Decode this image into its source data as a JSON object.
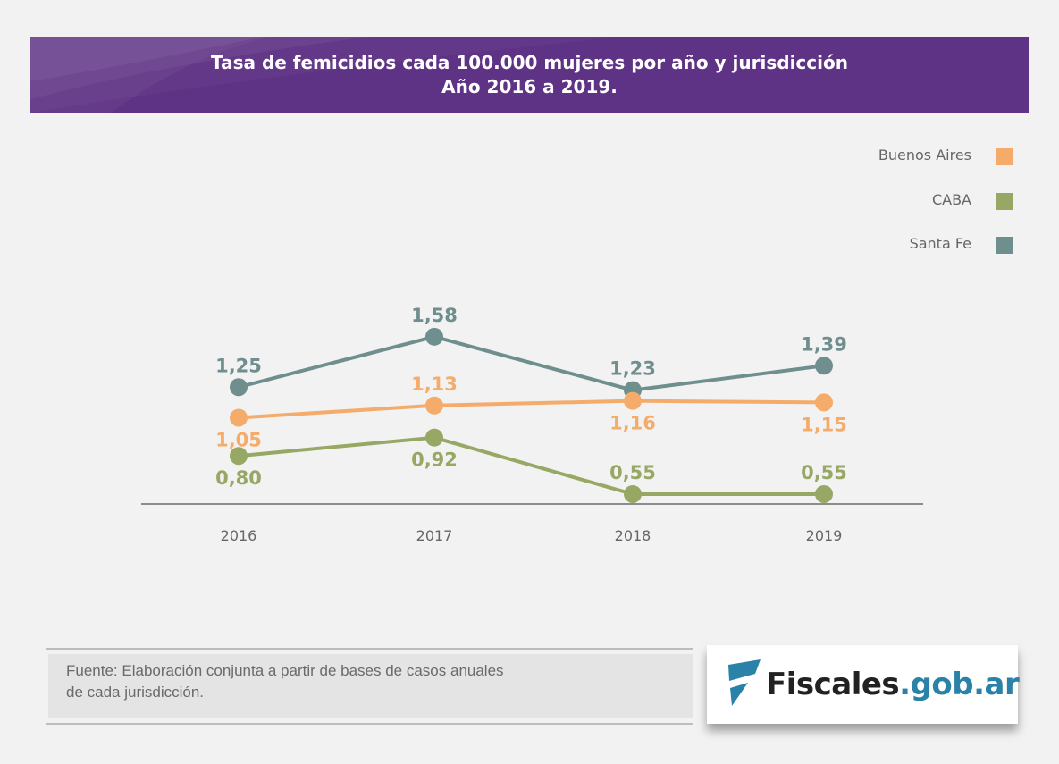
{
  "header": {
    "title_line1": "Tasa de femicidios cada 100.000 mujeres por año y jurisdicción",
    "title_line2": "Año 2016 a 2019."
  },
  "colors": {
    "header_bg": "#5e3285",
    "buenos_aires": "#f5ac6a",
    "caba": "#97a865",
    "santa_fe": "#6f8f8e",
    "axis": "#8c8c8c"
  },
  "chart_data": {
    "type": "line",
    "title": "Tasa de femicidios cada 100.000 mujeres por año y jurisdicción. Año 2016 a 2019.",
    "xlabel": "",
    "ylabel": "",
    "categories": [
      "2016",
      "2017",
      "2018",
      "2019"
    ],
    "ylim": [
      0.0,
      1.8
    ],
    "grid": false,
    "legend_position": "top-right",
    "series": [
      {
        "name": "Buenos Aires",
        "color": "#f5ac6a",
        "values": [
          1.05,
          1.13,
          1.16,
          1.15
        ],
        "labels": [
          "1,05",
          "1,13",
          "1,16",
          "1,15"
        ],
        "label_pos": [
          "below",
          "above",
          "below",
          "below"
        ]
      },
      {
        "name": "CABA",
        "color": "#97a865",
        "values": [
          0.8,
          0.92,
          0.55,
          0.55
        ],
        "labels": [
          "0,80",
          "0,92",
          "0,55",
          "0,55"
        ],
        "label_pos": [
          "below",
          "below",
          "above",
          "above"
        ]
      },
      {
        "name": "Santa Fe",
        "color": "#6f8f8e",
        "values": [
          1.25,
          1.58,
          1.23,
          1.39
        ],
        "labels": [
          "1,25",
          "1,58",
          "1,23",
          "1,39"
        ],
        "label_pos": [
          "above",
          "above",
          "above",
          "above"
        ]
      }
    ]
  },
  "legend": [
    {
      "label": "Buenos Aires",
      "color": "#f5ac6a"
    },
    {
      "label": "CABA",
      "color": "#97a865"
    },
    {
      "label": "Santa Fe",
      "color": "#6f8f8e"
    }
  ],
  "footer": {
    "source_line1": "Fuente: Elaboración conjunta a partir de bases de casos anuales",
    "source_line2": "de cada jurisdicción.",
    "logo_word1": "Fiscales",
    "logo_word2": ".gob.ar"
  }
}
